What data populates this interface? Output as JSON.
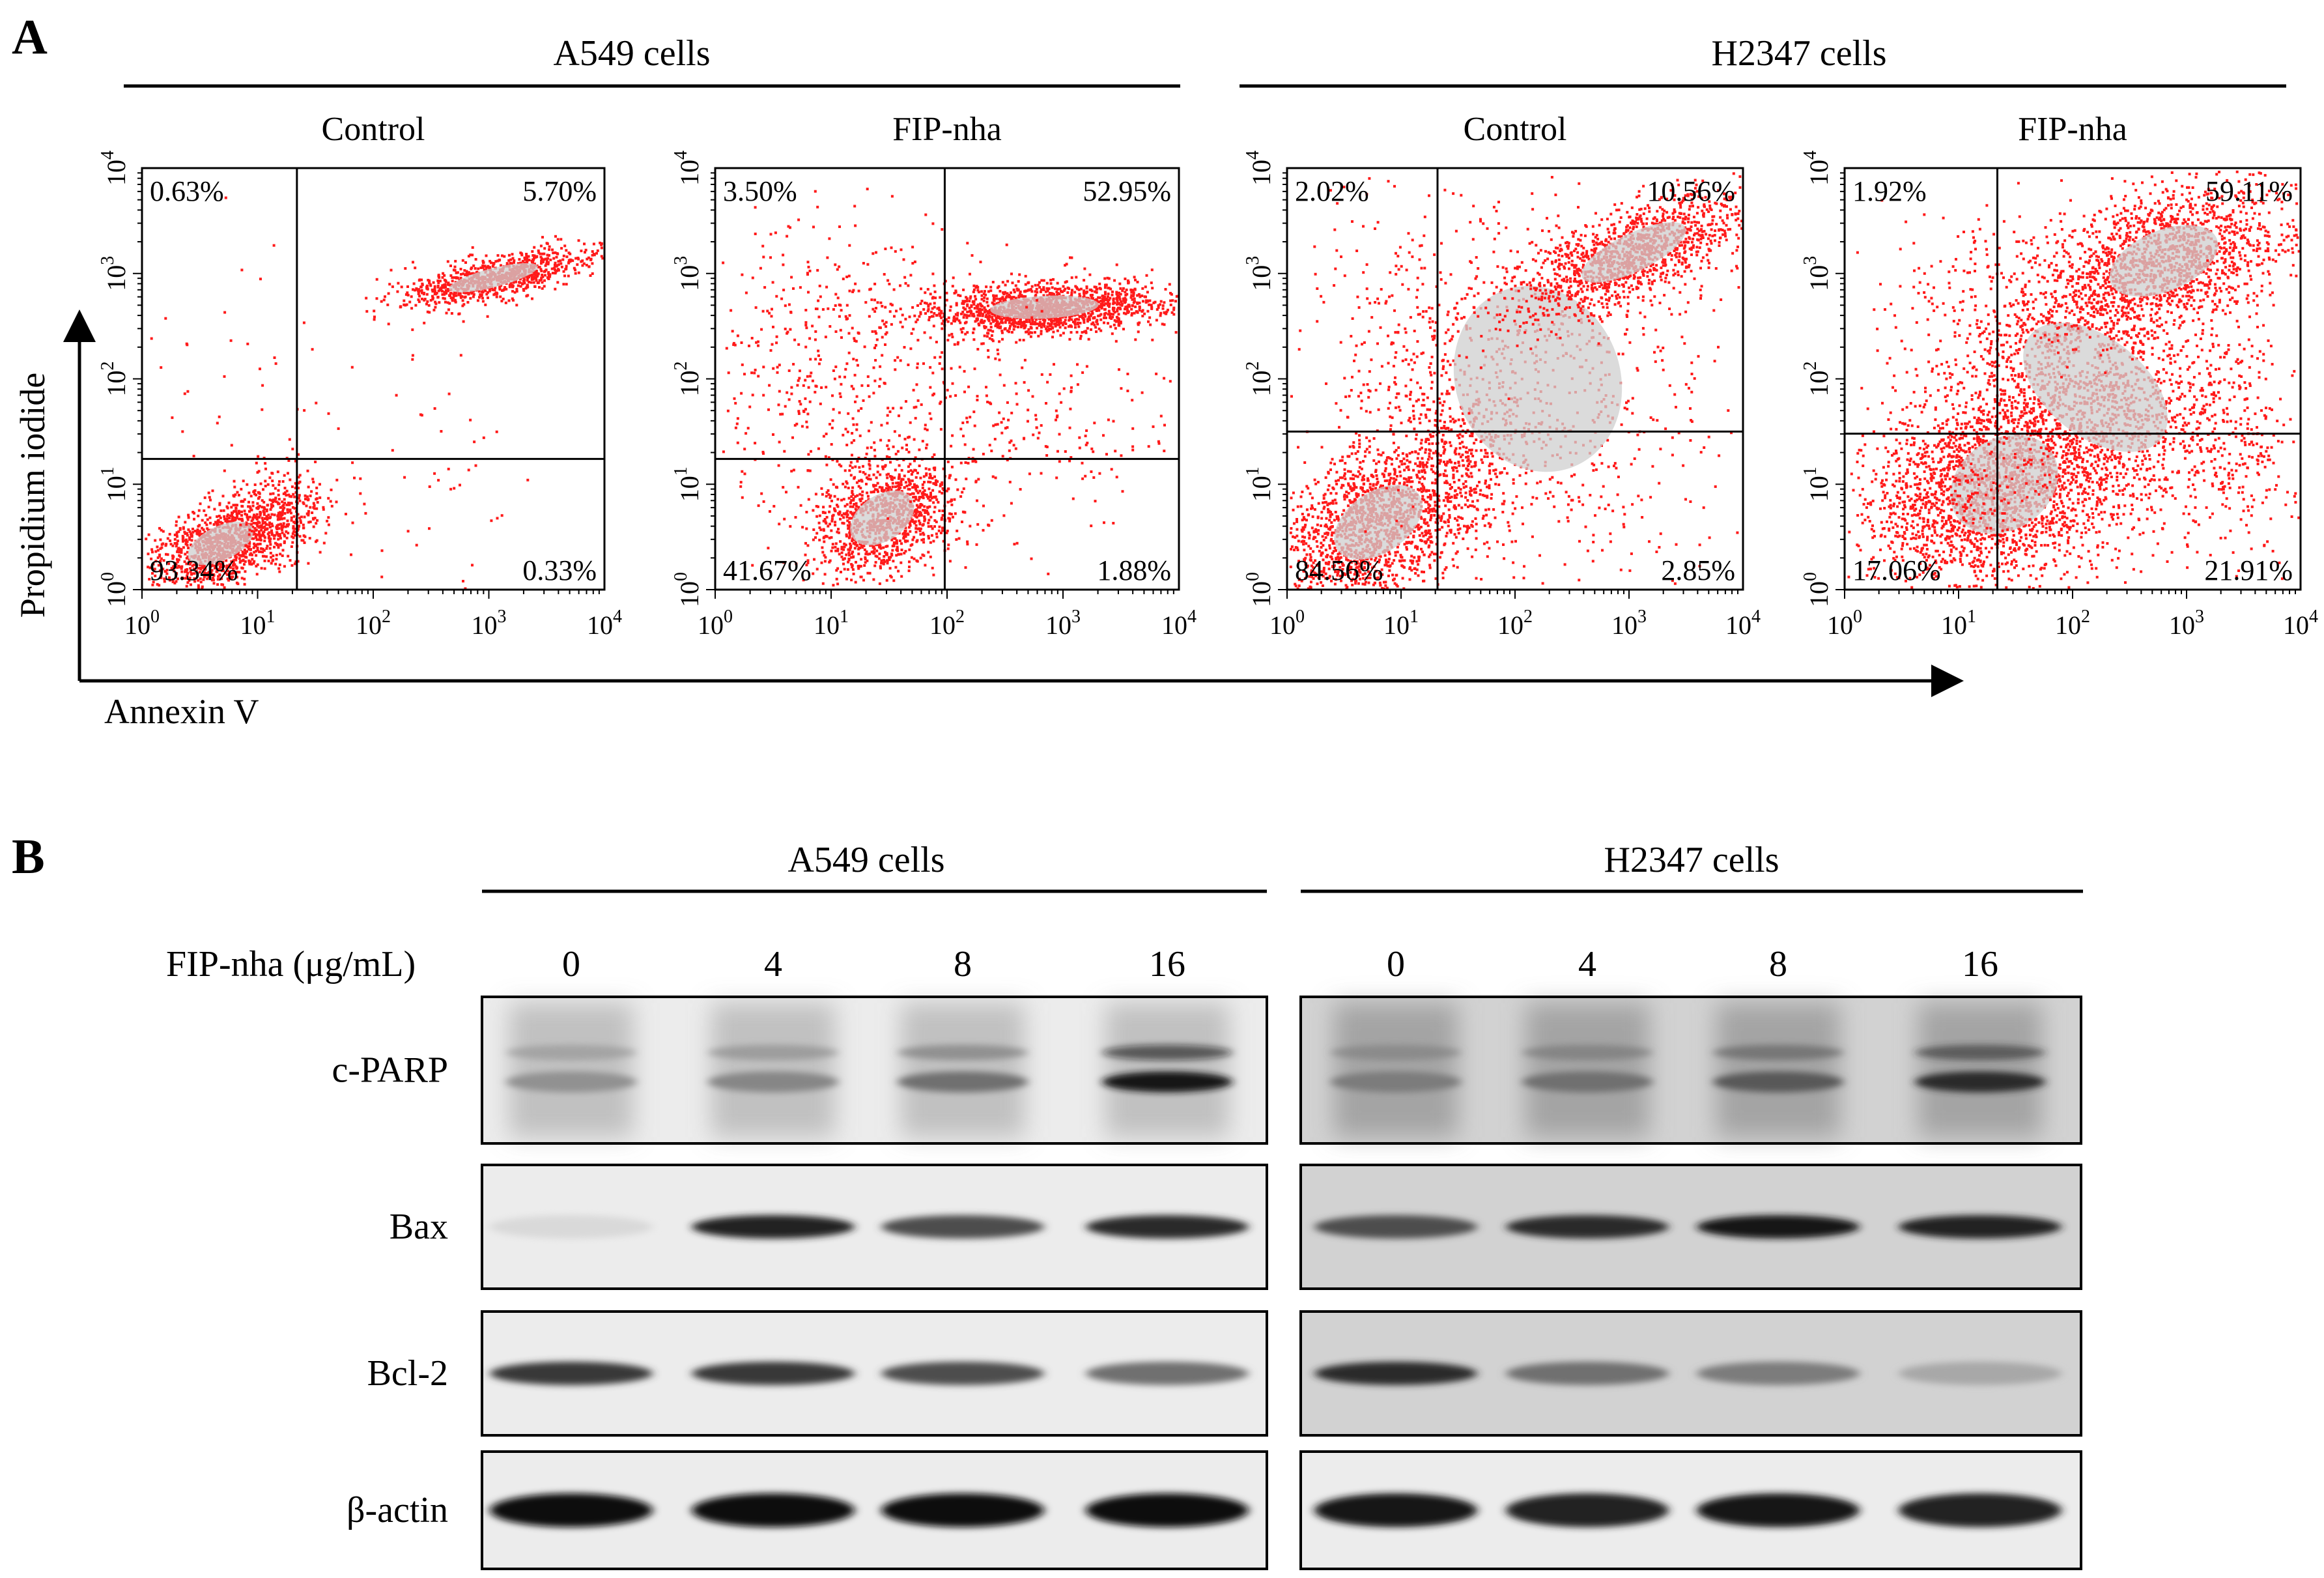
{
  "panel_a": {
    "label": "A",
    "groups": [
      {
        "label": "A549 cells"
      },
      {
        "label": "H2347 cells"
      }
    ],
    "y_axis_label": "Propidium iodide",
    "x_axis_label": "Annexin V",
    "tick_base": "10",
    "tick_exponents": [
      "0",
      "1",
      "2",
      "3",
      "4"
    ],
    "plots": [
      {
        "title": "Control",
        "quadrants": {
          "ul": "0.63%",
          "ur": "5.70%",
          "ll": "93.34%",
          "lr": "0.33%"
        }
      },
      {
        "title": "FIP-nha",
        "quadrants": {
          "ul": "3.50%",
          "ur": "52.95%",
          "ll": "41.67%",
          "lr": "1.88%"
        }
      },
      {
        "title": "Control",
        "quadrants": {
          "ul": "2.02%",
          "ur": "10.56%",
          "ll": "84.56%",
          "lr": "2.85%"
        }
      },
      {
        "title": "FIP-nha",
        "quadrants": {
          "ul": "1.92%",
          "ur": "59.11%",
          "ll": "17.06%",
          "lr": "21.91%"
        }
      }
    ],
    "colors": {
      "dot": "#ff1a1a",
      "core": "#cfcfcf"
    }
  },
  "panel_b": {
    "label": "B",
    "groups": [
      {
        "label": "A549 cells"
      },
      {
        "label": "H2347 cells"
      }
    ],
    "dose_label": "FIP-nha (μg/mL)",
    "doses": [
      "0",
      "4",
      "8",
      "16"
    ],
    "proteins": [
      {
        "name": "c-PARP",
        "a549": [
          0.4,
          0.45,
          0.55,
          0.95
        ],
        "h2347": [
          0.5,
          0.55,
          0.65,
          0.85
        ]
      },
      {
        "name": "Bax",
        "a549": [
          0.08,
          0.9,
          0.7,
          0.85
        ],
        "h2347": [
          0.7,
          0.85,
          0.95,
          0.9
        ]
      },
      {
        "name": "Bcl-2",
        "a549": [
          0.8,
          0.8,
          0.7,
          0.55
        ],
        "h2347": [
          0.85,
          0.55,
          0.5,
          0.3
        ]
      },
      {
        "name": "β-actin",
        "a549": [
          1.0,
          1.0,
          1.0,
          1.0
        ],
        "h2347": [
          0.95,
          0.9,
          0.95,
          0.9
        ]
      }
    ]
  }
}
